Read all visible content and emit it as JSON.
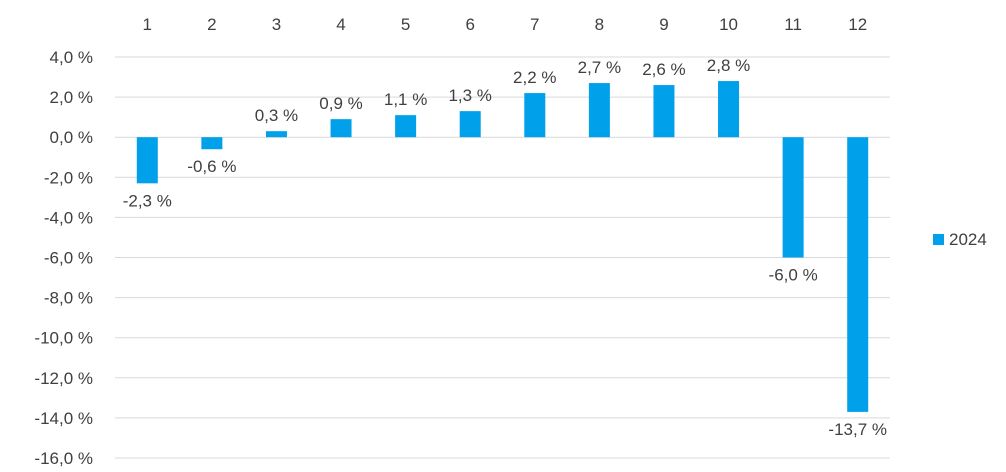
{
  "chart_data": {
    "type": "bar",
    "categories": [
      "1",
      "2",
      "3",
      "4",
      "5",
      "6",
      "7",
      "8",
      "9",
      "10",
      "11",
      "12"
    ],
    "series": [
      {
        "name": "2024",
        "values": [
          -2.3,
          -0.6,
          0.3,
          0.9,
          1.1,
          1.3,
          2.2,
          2.7,
          2.6,
          2.8,
          -6.0,
          -13.7
        ],
        "data_labels": [
          "-2,3 %",
          "-0,6 %",
          "0,3 %",
          "0,9 %",
          "1,1 %",
          "1,3 %",
          "2,2 %",
          "2,7 %",
          "2,6 %",
          "2,8 %",
          "-6,0 %",
          "-13,7 %"
        ]
      }
    ],
    "ylim": [
      -16,
      4
    ],
    "y_ticks": [
      4,
      2,
      0,
      -2,
      -4,
      -6,
      -8,
      -10,
      -12,
      -14,
      -16
    ],
    "y_tick_labels": [
      "4,0 %",
      "2,0 %",
      "0,0 %",
      "-2,0 %",
      "-4,0 %",
      "-6,0 %",
      "-8,0 %",
      "-10,0 %",
      "-12,0 %",
      "-14,0 %",
      "-16,0 %"
    ],
    "x_axis_position": "top",
    "grid": true,
    "legend": "right",
    "title": "",
    "xlabel": "",
    "ylabel": "",
    "colors": {
      "bar": "#00A0EA",
      "grid": "#D9D9D9",
      "text": "#404040"
    }
  }
}
